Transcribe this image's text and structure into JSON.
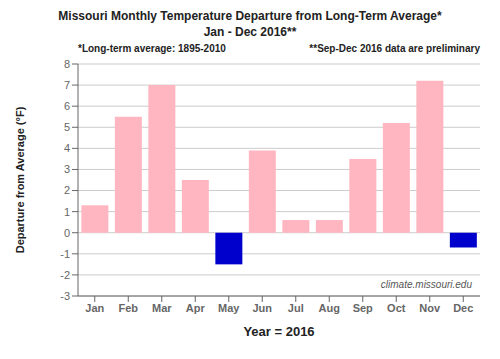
{
  "chart_data": {
    "type": "bar",
    "title": "Missouri Monthly Temperature Departure from Long-Term Average*",
    "subtitle": "Jan - Dec 2016**",
    "x_label": "Year = 2016",
    "y_label": "Departure from Average (°F)",
    "categories": [
      "Jan",
      "Feb",
      "Mar",
      "Apr",
      "May",
      "Jun",
      "Jul",
      "Aug",
      "Sep",
      "Oct",
      "Nov",
      "Dec"
    ],
    "values": [
      1.3,
      5.5,
      7.0,
      2.5,
      -1.5,
      3.9,
      0.6,
      0.6,
      3.5,
      5.2,
      7.2,
      -0.7
    ],
    "colors": [
      "#FFB6C1",
      "#FFB6C1",
      "#FFB6C1",
      "#FFB6C1",
      "#0000CC",
      "#FFB6C1",
      "#FFB6C1",
      "#FFB6C1",
      "#FFB6C1",
      "#FFB6C1",
      "#FFB6C1",
      "#0000CC"
    ],
    "ylim": [
      -3.0,
      8.0
    ],
    "yticks": [
      -3.0,
      -2.0,
      -1.0,
      0.0,
      1.0,
      2.0,
      3.0,
      4.0,
      5.0,
      6.0,
      7.0,
      8.0
    ],
    "grid": true,
    "annotations": [
      "*Long-term average: 1895-2010",
      "**Sep-Dec 2016 data are preliminary",
      "climate.missouri.edu"
    ]
  }
}
